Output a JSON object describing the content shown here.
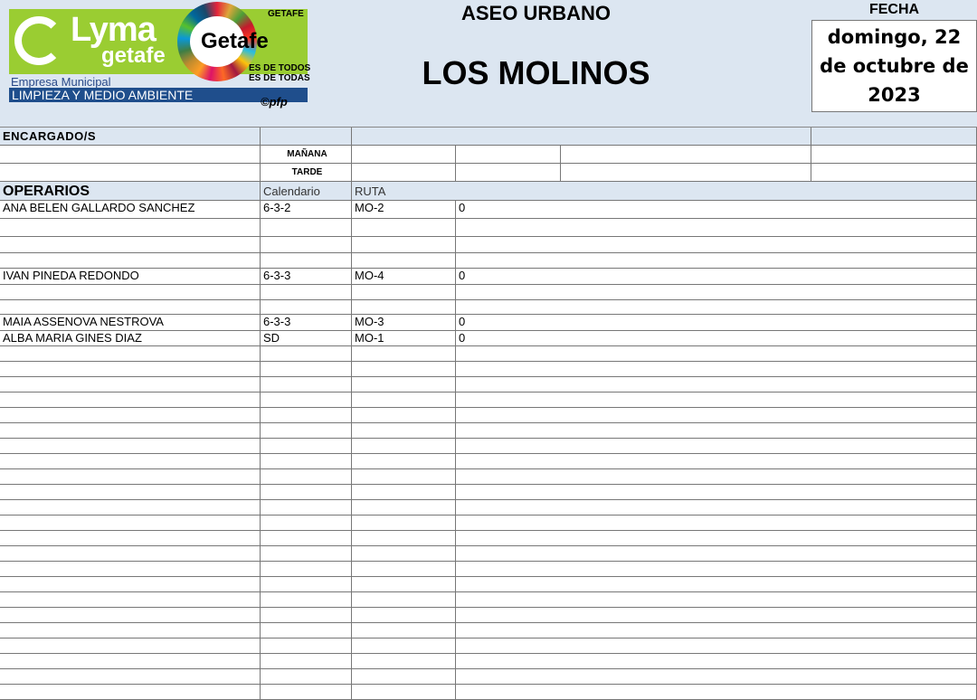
{
  "logo": {
    "brand": "Lyma",
    "brand_sub": "getafe",
    "company": "Empresa Municipal",
    "department": "LIMPIEZA Y MEDIO AMBIENTE",
    "city": "Getafe",
    "city_hall": "GETAFE",
    "slogan_1": "ES DE TODOS",
    "slogan_2": "ES DE TODAS",
    "credit": "©pfp"
  },
  "header": {
    "section": "ASEO URBANO",
    "zone": "LOS MOLINOS",
    "date_label": "FECHA",
    "date": "domingo, 22 de octubre de 2023"
  },
  "supervisors": {
    "label": "ENCARGADO/S",
    "morning": "MAÑANA",
    "afternoon": "TARDE"
  },
  "workers": {
    "label": "OPERARIOS",
    "col_calendar": "Calendario",
    "col_route": "RUTA",
    "rows": [
      {
        "name": "ANA BELEN GALLARDO SANCHEZ",
        "calendar": "6-3-2",
        "route": "MO-2",
        "value": "0"
      },
      {},
      {},
      {},
      {
        "name": "IVAN PINEDA REDONDO",
        "calendar": "6-3-3",
        "route": "MO-4",
        "value": "0"
      },
      {},
      {},
      {
        "name": "MAIA ASSENOVA NESTROVA",
        "calendar": "6-3-3",
        "route": "MO-3",
        "value": "0"
      },
      {
        "name": "ALBA MARIA GINES DIAZ",
        "calendar": "SD",
        "route": "MO-1",
        "value": "0"
      },
      {},
      {},
      {},
      {},
      {},
      {},
      {},
      {},
      {},
      {},
      {},
      {},
      {},
      {},
      {},
      {},
      {},
      {},
      {},
      {},
      {},
      {},
      {}
    ]
  }
}
